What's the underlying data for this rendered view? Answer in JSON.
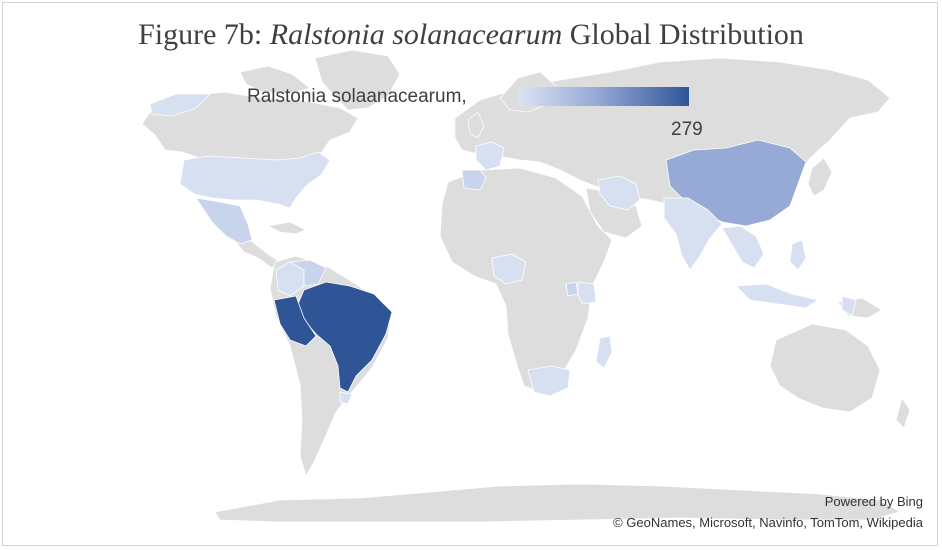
{
  "title": {
    "prefix": "Figure 7b: ",
    "species": "Ralstonia solanacearum",
    "suffix": " Global Distribution"
  },
  "legend": {
    "label": "Ralstonia solaanacearum,",
    "max_value": "279",
    "colors": {
      "low": "#dbe3f3",
      "high": "#2f5597"
    }
  },
  "credits": {
    "powered_by": "Powered by Bing",
    "sources": "© GeoNames, Microsoft, Navinfo, TomTom, Wikipedia"
  },
  "colors": {
    "no_data": "#dddddd",
    "border": "#ffffff",
    "level_low": "#d7e0f1",
    "level_mid": "#c8d4ec",
    "level_midhigh": "#97aad6",
    "level_high": "#2f5597"
  },
  "shaded_regions": [
    {
      "name": "Brazil",
      "level": "high"
    },
    {
      "name": "Peru",
      "level": "high"
    },
    {
      "name": "China",
      "level": "midhigh"
    },
    {
      "name": "United States",
      "level": "low"
    },
    {
      "name": "Mexico",
      "level": "mid"
    },
    {
      "name": "Venezuela",
      "level": "mid"
    },
    {
      "name": "Colombia",
      "level": "low"
    },
    {
      "name": "India",
      "level": "low"
    },
    {
      "name": "Iran",
      "level": "low"
    },
    {
      "name": "Spain",
      "level": "mid"
    },
    {
      "name": "France",
      "level": "low"
    },
    {
      "name": "Nigeria",
      "level": "low"
    },
    {
      "name": "South Africa",
      "level": "low"
    },
    {
      "name": "Madagascar",
      "level": "low"
    },
    {
      "name": "Uganda",
      "level": "mid"
    },
    {
      "name": "Kenya",
      "level": "low"
    },
    {
      "name": "Indonesia",
      "level": "low"
    },
    {
      "name": "Philippines",
      "level": "low"
    },
    {
      "name": "Southeast Asia",
      "level": "low"
    },
    {
      "name": "Uruguay",
      "level": "low"
    },
    {
      "name": "Canada",
      "level": "low"
    }
  ]
}
